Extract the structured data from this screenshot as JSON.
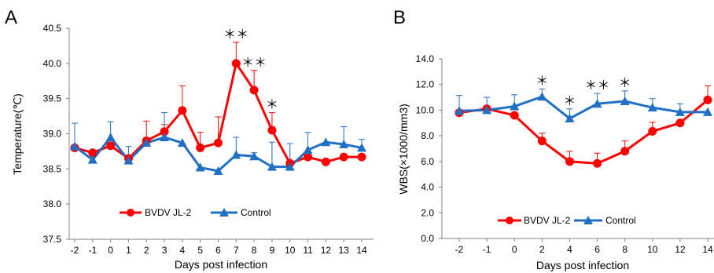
{
  "chart_data": [
    {
      "type": "line",
      "panel_label": "A",
      "xlabel": "Days post infection",
      "ylabel": "Temperature(℃)",
      "x": [
        -2,
        -1,
        0,
        1,
        2,
        3,
        4,
        5,
        6,
        7,
        8,
        9,
        10,
        11,
        12,
        13,
        14
      ],
      "ylim": [
        37.5,
        40.5
      ],
      "yticks": [
        "37.5",
        "38.0",
        "38.5",
        "39.0",
        "39.5",
        "40.0",
        "40.5"
      ],
      "series": [
        {
          "name": "BVDV JL-2",
          "color": "#ff0000",
          "marker": "circle",
          "values": [
            38.8,
            38.73,
            38.83,
            38.65,
            38.9,
            39.03,
            39.33,
            38.8,
            38.87,
            40.0,
            39.62,
            39.05,
            38.58,
            38.67,
            38.6,
            38.67,
            38.67
          ],
          "errors": [
            0.0,
            0.0,
            0.0,
            0.0,
            0.28,
            0.1,
            0.35,
            0.22,
            0.37,
            0.3,
            0.28,
            0.25,
            0.0,
            0.0,
            0.0,
            0.0,
            0.0
          ]
        },
        {
          "name": "Control",
          "color": "#1f6fc5",
          "marker": "triangle",
          "values": [
            38.82,
            38.63,
            38.95,
            38.62,
            38.87,
            38.95,
            38.87,
            38.52,
            38.47,
            38.7,
            38.68,
            38.53,
            38.53,
            38.77,
            38.88,
            38.85,
            38.8
          ],
          "errors": [
            0.33,
            0.12,
            0.22,
            0.2,
            0.0,
            0.35,
            0.0,
            0.0,
            0.0,
            0.25,
            0.05,
            0.35,
            0.33,
            0.25,
            0.0,
            0.25,
            0.12
          ]
        }
      ],
      "significance": [
        {
          "x": 7,
          "label": "＊＊"
        },
        {
          "x": 8,
          "label": "＊＊"
        },
        {
          "x": 9,
          "label": "＊"
        }
      ],
      "legend_position": "bottom-center"
    },
    {
      "type": "line",
      "panel_label": "B",
      "xlabel": "Days post  infection",
      "ylabel": "WBS(×1000/mm3)",
      "x": [
        -2,
        -1,
        0,
        2,
        4,
        6,
        8,
        10,
        12,
        14
      ],
      "ylim": [
        0.0,
        14.0
      ],
      "yticks": [
        "0.0",
        "2.0",
        "4.0",
        "6.0",
        "8.0",
        "10.0",
        "12.0",
        "14.0"
      ],
      "series": [
        {
          "name": "BVDV JL-2",
          "color": "#ff0000",
          "marker": "circle",
          "values": [
            9.8,
            10.1,
            9.6,
            7.6,
            6.0,
            5.85,
            6.8,
            8.35,
            9.0,
            10.8
          ],
          "errors": [
            0.0,
            0.0,
            0.0,
            0.6,
            0.8,
            0.8,
            0.8,
            0.7,
            0.0,
            1.1
          ]
        },
        {
          "name": "Control",
          "color": "#1f6fc5",
          "marker": "triangle",
          "values": [
            9.95,
            10.0,
            10.3,
            11.05,
            9.35,
            10.5,
            10.7,
            10.2,
            9.85,
            9.85
          ],
          "errors": [
            1.2,
            1.0,
            0.9,
            0.6,
            0.75,
            0.8,
            0.8,
            0.7,
            0.65,
            0.0
          ]
        }
      ],
      "significance": [
        {
          "x": 2,
          "label": "＊"
        },
        {
          "x": 4,
          "label": "＊"
        },
        {
          "x": 6,
          "label": "＊＊"
        },
        {
          "x": 8,
          "label": "＊"
        }
      ],
      "legend_position": "bottom-center"
    }
  ]
}
